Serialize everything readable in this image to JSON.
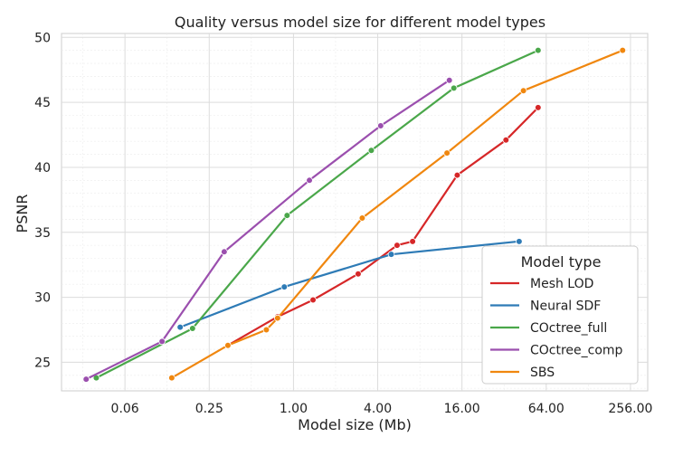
{
  "chart_data": {
    "type": "line",
    "title": "Quality versus model size for different model types",
    "xlabel": "Model size (Mb)",
    "ylabel": "PSNR",
    "x_scale": "log2",
    "xlim": [
      0.022,
      340
    ],
    "ylim": [
      22.8,
      50.3
    ],
    "x_ticks": [
      {
        "value": 0.0625,
        "label": "0.06"
      },
      {
        "value": 0.25,
        "label": "0.25"
      },
      {
        "value": 1,
        "label": "1.00"
      },
      {
        "value": 4,
        "label": "4.00"
      },
      {
        "value": 16,
        "label": "16.00"
      },
      {
        "value": 64,
        "label": "64.00"
      },
      {
        "value": 256,
        "label": "256.00"
      }
    ],
    "y_ticks": [
      25,
      30,
      35,
      40,
      45,
      50
    ],
    "grid": true,
    "legend": {
      "title": "Model type",
      "position": "lower-right"
    },
    "series": [
      {
        "name": "Mesh LOD",
        "color": "#d62728",
        "points": [
          [
            0.34,
            26.3
          ],
          [
            0.77,
            28.5
          ],
          [
            1.38,
            29.8
          ],
          [
            2.9,
            31.8
          ],
          [
            5.5,
            34.0
          ],
          [
            7.1,
            34.3
          ],
          [
            14.8,
            39.4
          ],
          [
            33.0,
            42.1
          ],
          [
            56.0,
            44.6
          ]
        ]
      },
      {
        "name": "Neural SDF",
        "color": "#2e7bb6",
        "points": [
          [
            0.155,
            27.7
          ],
          [
            0.86,
            30.8
          ],
          [
            5.0,
            33.3
          ],
          [
            41.0,
            34.3
          ]
        ]
      },
      {
        "name": "COctree_full",
        "color": "#4aa74a",
        "points": [
          [
            0.039,
            23.8
          ],
          [
            0.19,
            27.6
          ],
          [
            0.9,
            36.3
          ],
          [
            3.6,
            41.3
          ],
          [
            14.0,
            46.1
          ],
          [
            56.0,
            49.0
          ]
        ]
      },
      {
        "name": "COctree_comp",
        "color": "#9b4fae",
        "points": [
          [
            0.033,
            23.7
          ],
          [
            0.115,
            26.6
          ],
          [
            0.32,
            33.5
          ],
          [
            1.3,
            39.0
          ],
          [
            4.2,
            43.2
          ],
          [
            13.0,
            46.7
          ]
        ]
      },
      {
        "name": "SBS",
        "color": "#f0870f",
        "points": [
          [
            0.135,
            23.8
          ],
          [
            0.34,
            26.3
          ],
          [
            0.64,
            27.5
          ],
          [
            0.77,
            28.4
          ],
          [
            3.1,
            36.1
          ],
          [
            12.5,
            41.1
          ],
          [
            44.0,
            45.9
          ],
          [
            225.0,
            49.0
          ]
        ]
      }
    ]
  }
}
